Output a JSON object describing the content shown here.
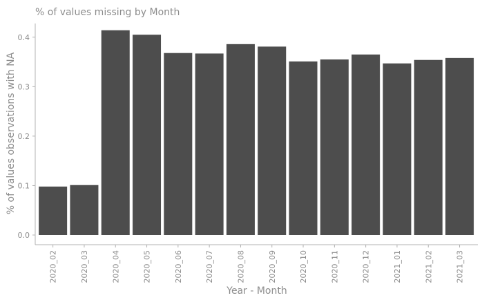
{
  "chart_data": {
    "type": "bar",
    "title": "% of values missing by Month",
    "xlabel": "Year - Month",
    "ylabel": "% of values observations with NA",
    "categories": [
      "2020_02",
      "2020_03",
      "2020_04",
      "2020_05",
      "2020_06",
      "2020_07",
      "2020_08",
      "2020_09",
      "2020_10",
      "2020_11",
      "2020_12",
      "2021_01",
      "2021_02",
      "2021_03"
    ],
    "values": [
      0.098,
      0.101,
      0.414,
      0.405,
      0.368,
      0.367,
      0.386,
      0.381,
      0.351,
      0.355,
      0.365,
      0.347,
      0.354,
      0.358
    ],
    "ylim": [
      0,
      0.435
    ],
    "yticks": [
      0.0,
      0.1,
      0.2,
      0.3,
      0.4
    ],
    "ytick_labels": [
      "0.0",
      "0.1",
      "0.2",
      "0.3",
      "0.4"
    ],
    "grid": false,
    "legend": "none",
    "colors": {
      "bar": "#4d4d4d",
      "text": "#8c8c8c",
      "axis": "#b3b3b3"
    }
  }
}
